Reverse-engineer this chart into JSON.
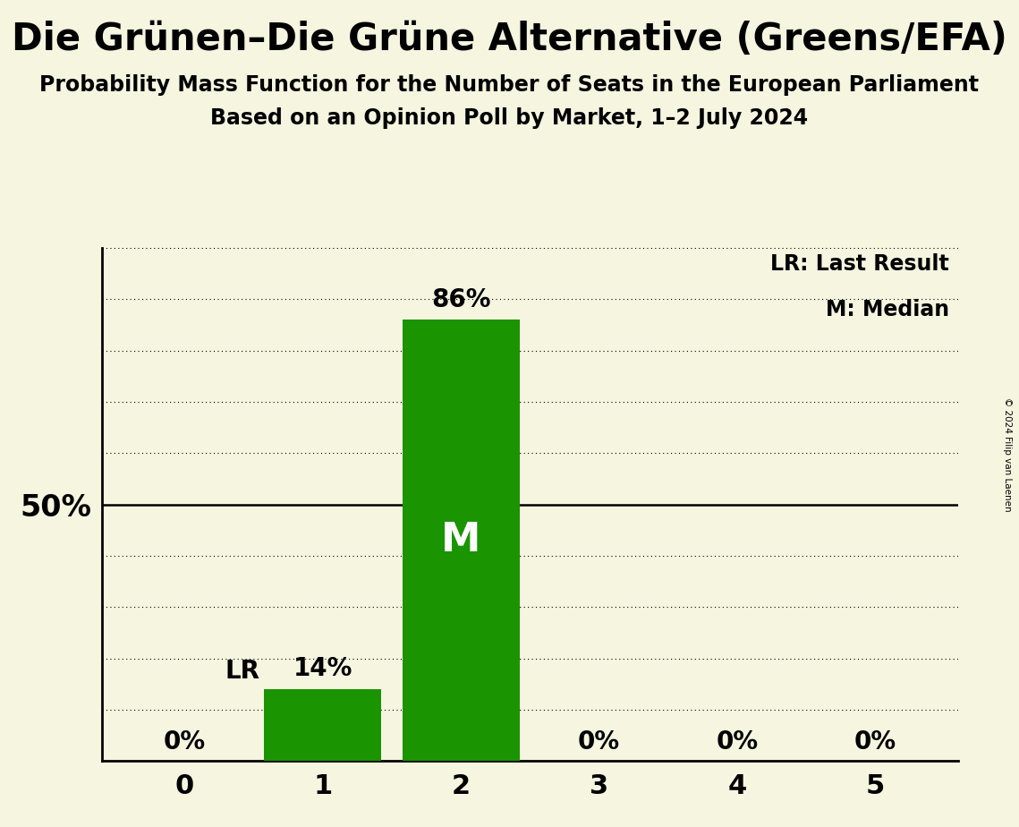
{
  "title": "Die Grünen–Die Grüne Alternative (Greens/EFA)",
  "subtitle1": "Probability Mass Function for the Number of Seats in the European Parliament",
  "subtitle2": "Based on an Opinion Poll by Market, 1–2 July 2024",
  "categories": [
    0,
    1,
    2,
    3,
    4,
    5
  ],
  "values": [
    0,
    14,
    86,
    0,
    0,
    0
  ],
  "bar_color": "#1a9400",
  "background_color": "#f5f5e0",
  "median_bar": 2,
  "last_result_bar": 1,
  "legend_lr": "LR: Last Result",
  "legend_m": "M: Median",
  "ylabel_50": "50%",
  "copyright": "© 2024 Filip van Laenen",
  "ylim": [
    0,
    100
  ],
  "dotted_grid_values": [
    10,
    20,
    30,
    40,
    60,
    70,
    80,
    90,
    100
  ],
  "solid_line_value": 50,
  "title_fontsize": 30,
  "subtitle_fontsize": 17,
  "bar_label_fontsize": 20,
  "axis_tick_fontsize": 22,
  "legend_fontsize": 17,
  "ylabel_fontsize": 24,
  "median_label_fontsize": 32
}
